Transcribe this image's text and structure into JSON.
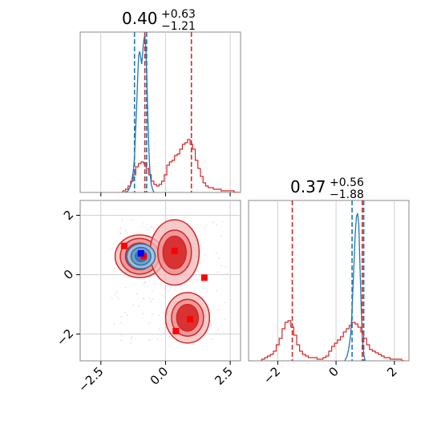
{
  "chart_data": {
    "type": "corner",
    "colors": {
      "red": "#d62728",
      "blue": "#1f77b4",
      "marker_red": "#ff0000",
      "marker_blue": "#0000ff",
      "grid": "#d0d0d0",
      "frame": "#888888"
    },
    "panels": [
      {
        "id": "hist_x",
        "type": "histogram",
        "title": {
          "value": "0.40",
          "upper": "+0.63",
          "lower": "−1.21"
        },
        "xlim": [
          -3.3,
          2.9
        ],
        "ylim": [
          0,
          1
        ],
        "x_ticks": [
          -2.5,
          0.0,
          2.5
        ],
        "grid": true,
        "lines": {
          "red_dashed": [
            -0.8,
            1.0
          ],
          "blue_dashed": [
            -1.2,
            -0.73
          ]
        },
        "series": [
          {
            "name": "",
            "color": "red",
            "step_x": [
              -1.6,
              -1.5,
              -1.4,
              -1.3,
              -1.2,
              -1.1,
              -1.0,
              -0.9,
              -0.8,
              -0.7,
              -0.6,
              -0.5,
              -0.4,
              -0.3,
              -0.2,
              -0.1,
              0.0,
              0.1,
              0.2,
              0.3,
              0.4,
              0.5,
              0.6,
              0.7,
              0.8,
              0.9,
              1.0,
              1.1,
              1.2,
              1.3,
              1.4,
              1.5,
              1.6,
              1.7,
              1.8,
              1.9,
              2.0,
              2.1,
              2.2,
              2.3,
              2.4,
              2.5,
              2.6,
              2.7,
              2.8
            ],
            "step_y": [
              0.01,
              0.02,
              0.04,
              0.07,
              0.11,
              0.16,
              0.18,
              0.19,
              0.18,
              0.15,
              0.11,
              0.07,
              0.05,
              0.04,
              0.05,
              0.07,
              0.11,
              0.17,
              0.19,
              0.2,
              0.23,
              0.24,
              0.27,
              0.3,
              0.31,
              0.33,
              0.3,
              0.27,
              0.2,
              0.15,
              0.1,
              0.06,
              0.04,
              0.03,
              0.03,
              0.02,
              0.02,
              0.02,
              0.01,
              0.01,
              0.01,
              0.01,
              0.01,
              0.0,
              0.0
            ]
          },
          {
            "name": "",
            "color": "blue",
            "x": [
              -1.55,
              -1.45,
              -1.38,
              -1.32,
              -1.28,
              -1.24,
              -1.2,
              -1.16,
              -1.12,
              -1.08,
              -1.04,
              -1.0,
              -0.96,
              -0.92,
              -0.88,
              -0.84,
              -0.8,
              -0.76,
              -0.72,
              -0.68,
              -0.64,
              -0.6,
              -0.55,
              -0.5,
              -0.45
            ],
            "y": [
              0.0,
              0.01,
              0.03,
              0.06,
              0.1,
              0.14,
              0.22,
              0.38,
              0.52,
              0.7,
              0.85,
              0.88,
              0.84,
              0.8,
              0.88,
              0.95,
              0.98,
              0.9,
              0.7,
              0.45,
              0.25,
              0.12,
              0.05,
              0.02,
              0.0
            ]
          }
        ]
      },
      {
        "id": "hist_y",
        "type": "histogram",
        "title": {
          "value": "0.37",
          "upper": "+0.56",
          "lower": "−1.88"
        },
        "xlim": [
          -3.0,
          2.5
        ],
        "ylim": [
          0,
          1
        ],
        "x_ticks": [
          -2,
          0,
          2
        ],
        "grid": true,
        "lines": {
          "red_dashed": [
            -1.5,
            0.9
          ],
          "blue_dashed": [
            0.55,
            0.95
          ]
        },
        "series": [
          {
            "name": "",
            "color": "red",
            "step_x": [
              -2.5,
              -2.4,
              -2.3,
              -2.2,
              -2.1,
              -2.0,
              -1.9,
              -1.8,
              -1.7,
              -1.6,
              -1.5,
              -1.4,
              -1.3,
              -1.2,
              -1.1,
              -1.0,
              -0.9,
              -0.8,
              -0.7,
              -0.6,
              -0.5,
              -0.4,
              -0.3,
              -0.2,
              -0.1,
              0.0,
              0.1,
              0.2,
              0.3,
              0.4,
              0.5,
              0.6,
              0.7,
              0.8,
              0.9,
              1.0,
              1.1,
              1.2,
              1.3,
              1.4,
              1.5,
              1.6,
              1.7,
              1.8,
              1.9,
              2.0,
              2.1,
              2.2,
              2.3
            ],
            "step_y": [
              0.01,
              0.02,
              0.03,
              0.04,
              0.06,
              0.1,
              0.14,
              0.2,
              0.24,
              0.25,
              0.21,
              0.16,
              0.1,
              0.06,
              0.04,
              0.03,
              0.02,
              0.02,
              0.02,
              0.01,
              0.01,
              0.02,
              0.03,
              0.06,
              0.09,
              0.11,
              0.13,
              0.15,
              0.18,
              0.2,
              0.22,
              0.24,
              0.23,
              0.21,
              0.18,
              0.14,
              0.1,
              0.07,
              0.06,
              0.05,
              0.04,
              0.03,
              0.02,
              0.02,
              0.01,
              0.01,
              0.01,
              0.01,
              0.0
            ]
          },
          {
            "name": "",
            "color": "blue",
            "x": [
              0.3,
              0.38,
              0.44,
              0.5,
              0.54,
              0.58,
              0.62,
              0.66,
              0.7,
              0.74,
              0.78,
              0.82,
              0.86,
              0.9,
              0.95,
              1.0
            ],
            "y": [
              0.0,
              0.03,
              0.08,
              0.16,
              0.28,
              0.45,
              0.62,
              0.8,
              0.9,
              0.92,
              0.85,
              0.6,
              0.35,
              0.15,
              0.04,
              0.0
            ]
          }
        ]
      },
      {
        "id": "joint",
        "type": "contour",
        "xlim": [
          -3.3,
          2.9
        ],
        "ylim": [
          -2.9,
          2.5
        ],
        "x_ticks": [
          -2.5,
          0.0,
          2.5
        ],
        "y_ticks": [
          -2,
          0,
          2
        ],
        "grid": true,
        "red_clusters": [
          {
            "cx": -1.0,
            "cy": 0.62,
            "rx": [
              0.55,
              0.75,
              0.95
            ],
            "ry": [
              0.45,
              0.6,
              0.72
            ]
          },
          {
            "cx": 0.35,
            "cy": 0.75,
            "rx": [
              0.45,
              0.65,
              0.95
            ],
            "ry": [
              0.55,
              0.75,
              1.1
            ]
          },
          {
            "cx": 0.85,
            "cy": -1.45,
            "rx": [
              0.42,
              0.62,
              0.85
            ],
            "ry": [
              0.45,
              0.62,
              0.85
            ]
          }
        ],
        "blue_cluster": {
          "cx": -0.95,
          "cy": 0.62,
          "rx": [
            0.22,
            0.38,
            0.55
          ],
          "ry": [
            0.18,
            0.3,
            0.42
          ]
        },
        "markers_red": [
          {
            "x": -1.6,
            "y": 0.97
          },
          {
            "x": -0.85,
            "y": 0.62
          },
          {
            "x": 0.35,
            "y": 0.8
          },
          {
            "x": 1.5,
            "y": -0.1
          },
          {
            "x": 0.4,
            "y": -1.9
          },
          {
            "x": 0.95,
            "y": -1.5
          }
        ],
        "markers_blue": [
          {
            "x": -0.95,
            "y": 0.72
          }
        ]
      }
    ]
  }
}
